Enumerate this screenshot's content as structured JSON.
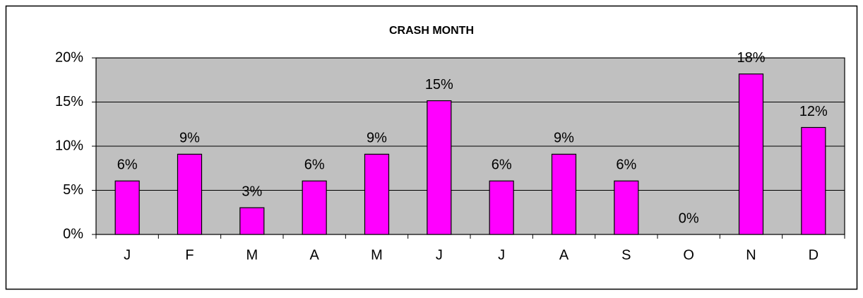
{
  "chart_data": {
    "type": "bar",
    "title": "CRASH MONTH",
    "categories": [
      "J",
      "F",
      "M",
      "A",
      "M",
      "J",
      "J",
      "A",
      "S",
      "O",
      "N",
      "D"
    ],
    "values": [
      6.06,
      9.09,
      3.03,
      6.06,
      9.09,
      15.15,
      6.06,
      9.09,
      6.06,
      0,
      18.18,
      12.12
    ],
    "value_labels": [
      "6%",
      "9%",
      "3%",
      "6%",
      "9%",
      "15%",
      "6%",
      "9%",
      "6%",
      "0%",
      "18%",
      "12%"
    ],
    "color": "#ff00ff",
    "ylim": [
      0,
      20
    ],
    "yticks": [
      {
        "value": 0,
        "label": "0%"
      },
      {
        "value": 5,
        "label": "5%"
      },
      {
        "value": 10,
        "label": "10%"
      },
      {
        "value": 15,
        "label": "15%"
      },
      {
        "value": 20,
        "label": "20%"
      }
    ],
    "grid": true
  }
}
